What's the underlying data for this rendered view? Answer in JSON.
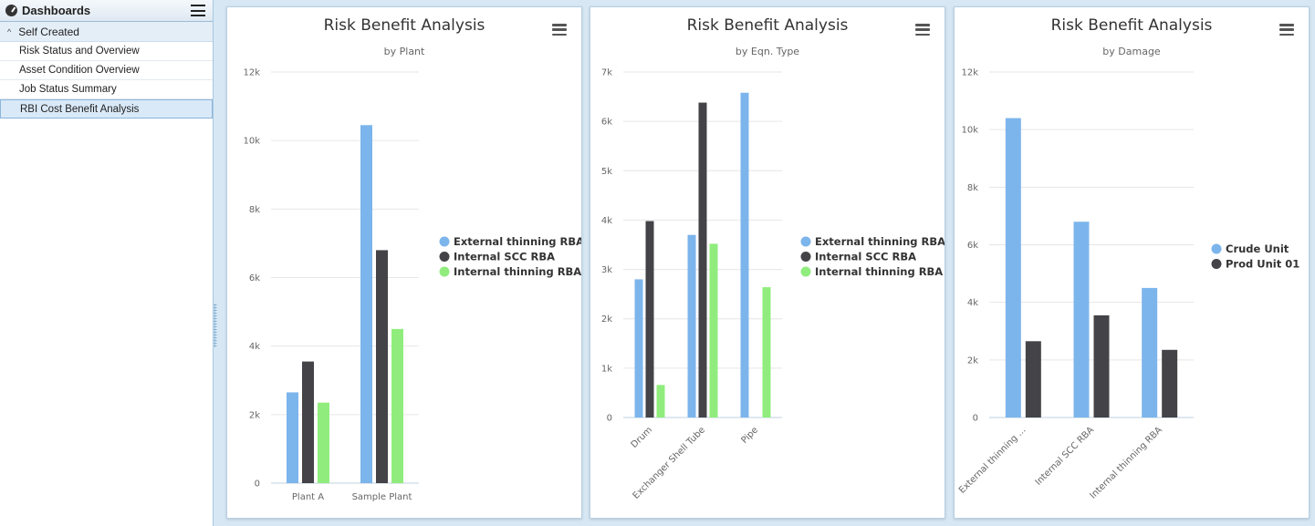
{
  "sidebar": {
    "title": "Dashboards",
    "group": "Self Created",
    "items": [
      {
        "label": "Risk Status and Overview"
      },
      {
        "label": "Asset Condition Overview"
      },
      {
        "label": "Job Status Summary"
      },
      {
        "label": "RBI Cost Benefit Analysis"
      }
    ],
    "active_index": 3
  },
  "colors": {
    "blue": "#7cb5ec",
    "dark": "#434348",
    "green": "#90ed7d"
  },
  "chart_data": [
    {
      "type": "bar",
      "title": "Risk Benefit Analysis",
      "subtitle": "by Plant",
      "categories": [
        "Plant A",
        "Sample Plant"
      ],
      "series": [
        {
          "name": "External thinning RBA",
          "values": [
            2650,
            10450
          ]
        },
        {
          "name": "Internal SCC RBA",
          "values": [
            3550,
            6800
          ]
        },
        {
          "name": "Internal thinning RBA",
          "values": [
            2350,
            4500
          ]
        }
      ],
      "ylim": [
        0,
        12000
      ],
      "yticks": [
        "0",
        "2k",
        "4k",
        "6k",
        "8k",
        "10k",
        "12k"
      ],
      "grid": true,
      "legend": "right"
    },
    {
      "type": "bar",
      "title": "Risk Benefit Analysis",
      "subtitle": "by Eqn. Type",
      "categories": [
        "Drum",
        "Exchanger Shell Tube",
        "Pipe"
      ],
      "series": [
        {
          "name": "External thinning RBA",
          "values": [
            2800,
            3700,
            6580
          ]
        },
        {
          "name": "Internal SCC RBA",
          "values": [
            3980,
            6380,
            0
          ]
        },
        {
          "name": "Internal thinning RBA",
          "values": [
            660,
            3520,
            2640
          ]
        }
      ],
      "ylim": [
        0,
        7000
      ],
      "yticks": [
        "0",
        "1k",
        "2k",
        "3k",
        "4k",
        "5k",
        "6k",
        "7k"
      ],
      "grid": true,
      "legend": "right"
    },
    {
      "type": "bar",
      "title": "Risk Benefit Analysis",
      "subtitle": "by Damage",
      "categories": [
        "External thinning ...",
        "Internal SCC RBA",
        "Internal thinning RBA"
      ],
      "series": [
        {
          "name": "Crude Unit",
          "values": [
            10400,
            6800,
            4500
          ]
        },
        {
          "name": "Prod Unit 01",
          "values": [
            2650,
            3550,
            2350
          ]
        }
      ],
      "ylim": [
        0,
        12000
      ],
      "yticks": [
        "0",
        "2k",
        "4k",
        "6k",
        "8k",
        "10k",
        "12k"
      ],
      "grid": true,
      "legend": "right"
    }
  ]
}
